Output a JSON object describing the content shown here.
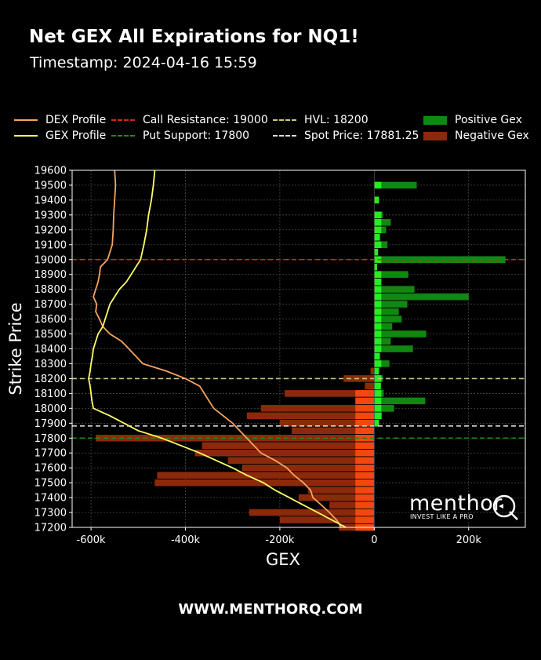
{
  "title": "Net GEX All Expirations for NQ1!",
  "subtitle": "Timestamp: 2024-04-16 15:59",
  "footer": "WWW.MENTHORQ.COM",
  "logo": {
    "name": "menthor",
    "tagline": "INVEST LIKE A PRO"
  },
  "legend": [
    {
      "label": "DEX Profile",
      "color": "#f4a460",
      "style": "solid"
    },
    {
      "label": "GEX Profile",
      "color": "#ffff66",
      "style": "solid"
    },
    {
      "label": "Call Resistance: 19000",
      "color": "#e02020",
      "style": "dashed"
    },
    {
      "label": "Put Support: 17800",
      "color": "#1a8c1a",
      "style": "dashed"
    },
    {
      "label": "HVL: 18200",
      "color": "#c8c878",
      "style": "dashed"
    },
    {
      "label": "Spot Price: 17881.25",
      "color": "#dddddd",
      "style": "dashed"
    },
    {
      "label": "Positive Gex",
      "color": "#118811",
      "style": "box"
    },
    {
      "label": "Negative Gex",
      "color": "#8b2a0a",
      "style": "box"
    }
  ],
  "chart_data": {
    "type": "bar",
    "orientation": "horizontal",
    "xlabel": "GEX",
    "ylabel": "Strike Price",
    "xlim": [
      -640000,
      320000
    ],
    "ylim": [
      17200,
      19600
    ],
    "x_ticks": [
      -600000,
      -400000,
      -200000,
      0,
      200000
    ],
    "x_tick_labels": [
      "-600k",
      "-400k",
      "-200k",
      "0",
      "200k"
    ],
    "y_ticks": [
      17200,
      17300,
      17400,
      17500,
      17600,
      17700,
      17800,
      17900,
      18000,
      18100,
      18200,
      18300,
      18400,
      18500,
      18600,
      18700,
      18800,
      18900,
      19000,
      19100,
      19200,
      19300,
      19400,
      19500,
      19600
    ],
    "grid": true,
    "reference_lines": [
      {
        "name": "Call Resistance",
        "value": 19000,
        "color": "#e02020"
      },
      {
        "name": "HVL",
        "value": 18200,
        "color": "#c8c878"
      },
      {
        "name": "Spot Price",
        "value": 17881.25,
        "color": "#dddddd"
      },
      {
        "name": "Put Support",
        "value": 17800,
        "color": "#1a8c1a"
      }
    ],
    "positive_gex": [
      [
        19500,
        90000
      ],
      [
        19400,
        10000
      ],
      [
        19300,
        18000
      ],
      [
        19250,
        35000
      ],
      [
        19200,
        25000
      ],
      [
        19150,
        12000
      ],
      [
        19100,
        28000
      ],
      [
        19050,
        8000
      ],
      [
        19000,
        278000
      ],
      [
        18950,
        6000
      ],
      [
        18900,
        72000
      ],
      [
        18850,
        15000
      ],
      [
        18800,
        85000
      ],
      [
        18750,
        200000
      ],
      [
        18700,
        70000
      ],
      [
        18650,
        52000
      ],
      [
        18600,
        58000
      ],
      [
        18550,
        38000
      ],
      [
        18500,
        110000
      ],
      [
        18450,
        35000
      ],
      [
        18400,
        82000
      ],
      [
        18350,
        12000
      ],
      [
        18300,
        32000
      ],
      [
        18250,
        10000
      ],
      [
        18200,
        18000
      ],
      [
        18150,
        14000
      ],
      [
        18100,
        20000
      ],
      [
        18050,
        108000
      ],
      [
        18000,
        42000
      ],
      [
        17950,
        16000
      ],
      [
        17900,
        10000
      ]
    ],
    "negative_gex": [
      [
        18250,
        -8000
      ],
      [
        18200,
        -65000
      ],
      [
        18150,
        -20000
      ],
      [
        18100,
        -190000
      ],
      [
        18050,
        -40000
      ],
      [
        18000,
        -240000
      ],
      [
        17950,
        -270000
      ],
      [
        17900,
        -200000
      ],
      [
        17850,
        -175000
      ],
      [
        17800,
        -590000
      ],
      [
        17750,
        -365000
      ],
      [
        17700,
        -380000
      ],
      [
        17650,
        -310000
      ],
      [
        17600,
        -280000
      ],
      [
        17550,
        -460000
      ],
      [
        17500,
        -465000
      ],
      [
        17450,
        -140000
      ],
      [
        17400,
        -160000
      ],
      [
        17350,
        -95000
      ],
      [
        17300,
        -265000
      ],
      [
        17250,
        -200000
      ],
      [
        17200,
        -75000
      ]
    ],
    "series": [
      {
        "name": "DEX Profile",
        "color": "#f4a460",
        "points": [
          [
            19600,
            -550000
          ],
          [
            19500,
            -548000
          ],
          [
            19400,
            -550000
          ],
          [
            19300,
            -552000
          ],
          [
            19200,
            -553000
          ],
          [
            19100,
            -555000
          ],
          [
            19000,
            -565000
          ],
          [
            18950,
            -580000
          ],
          [
            18900,
            -582000
          ],
          [
            18850,
            -585000
          ],
          [
            18800,
            -590000
          ],
          [
            18750,
            -595000
          ],
          [
            18700,
            -588000
          ],
          [
            18650,
            -590000
          ],
          [
            18600,
            -582000
          ],
          [
            18550,
            -575000
          ],
          [
            18500,
            -560000
          ],
          [
            18450,
            -535000
          ],
          [
            18400,
            -520000
          ],
          [
            18350,
            -505000
          ],
          [
            18300,
            -490000
          ],
          [
            18250,
            -440000
          ],
          [
            18200,
            -400000
          ],
          [
            18150,
            -370000
          ],
          [
            18100,
            -360000
          ],
          [
            18050,
            -350000
          ],
          [
            18000,
            -340000
          ],
          [
            17950,
            -320000
          ],
          [
            17900,
            -300000
          ],
          [
            17850,
            -285000
          ],
          [
            17800,
            -270000
          ],
          [
            17750,
            -255000
          ],
          [
            17700,
            -240000
          ],
          [
            17650,
            -210000
          ],
          [
            17600,
            -185000
          ],
          [
            17550,
            -170000
          ],
          [
            17500,
            -150000
          ],
          [
            17450,
            -135000
          ],
          [
            17400,
            -130000
          ],
          [
            17350,
            -112000
          ],
          [
            17300,
            -95000
          ],
          [
            17250,
            -80000
          ],
          [
            17200,
            -70000
          ]
        ]
      },
      {
        "name": "GEX Profile",
        "color": "#ffff66",
        "points": [
          [
            19600,
            -465000
          ],
          [
            19500,
            -468000
          ],
          [
            19400,
            -472000
          ],
          [
            19300,
            -478000
          ],
          [
            19200,
            -482000
          ],
          [
            19100,
            -488000
          ],
          [
            19000,
            -495000
          ],
          [
            18950,
            -505000
          ],
          [
            18900,
            -515000
          ],
          [
            18850,
            -525000
          ],
          [
            18800,
            -540000
          ],
          [
            18750,
            -550000
          ],
          [
            18700,
            -560000
          ],
          [
            18650,
            -565000
          ],
          [
            18600,
            -570000
          ],
          [
            18550,
            -575000
          ],
          [
            18500,
            -585000
          ],
          [
            18450,
            -590000
          ],
          [
            18400,
            -595000
          ],
          [
            18350,
            -597000
          ],
          [
            18300,
            -600000
          ],
          [
            18250,
            -602000
          ],
          [
            18200,
            -605000
          ],
          [
            18150,
            -602000
          ],
          [
            18100,
            -600000
          ],
          [
            18050,
            -598000
          ],
          [
            18000,
            -595000
          ],
          [
            17950,
            -560000
          ],
          [
            17900,
            -530000
          ],
          [
            17850,
            -500000
          ],
          [
            17800,
            -450000
          ],
          [
            17750,
            -410000
          ],
          [
            17700,
            -370000
          ],
          [
            17650,
            -335000
          ],
          [
            17600,
            -300000
          ],
          [
            17550,
            -270000
          ],
          [
            17500,
            -235000
          ],
          [
            17450,
            -210000
          ],
          [
            17400,
            -180000
          ],
          [
            17350,
            -150000
          ],
          [
            17300,
            -120000
          ],
          [
            17250,
            -90000
          ],
          [
            17200,
            -60000
          ]
        ]
      }
    ]
  }
}
